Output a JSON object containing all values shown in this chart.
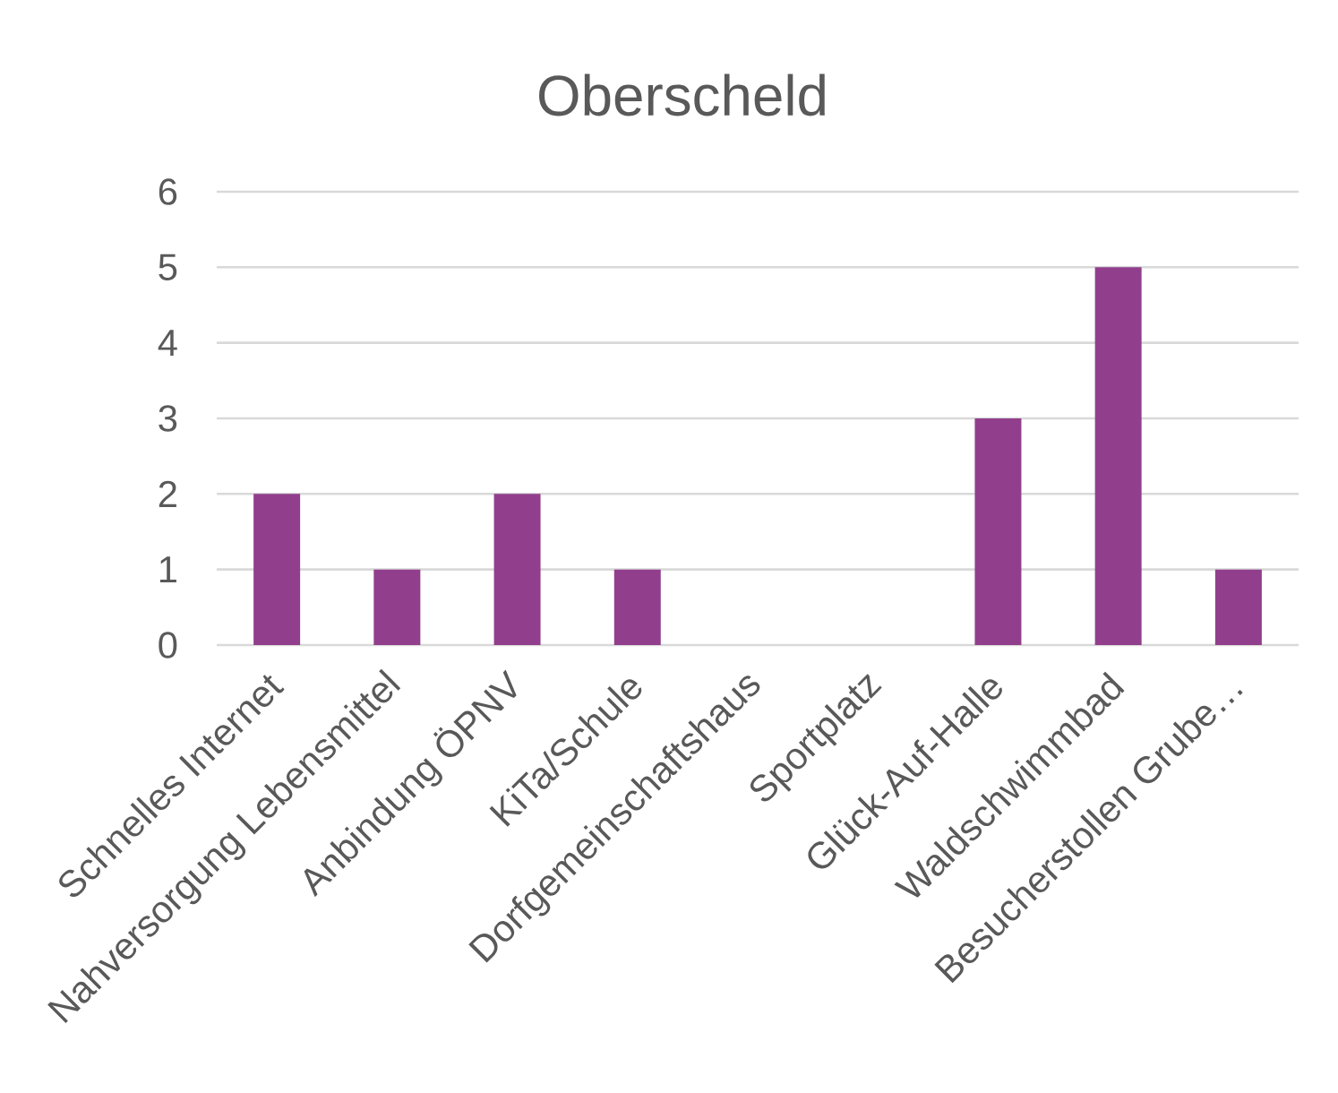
{
  "chart_data": {
    "type": "bar",
    "title": "Oberscheld",
    "categories": [
      "Schnelles Internet",
      "Nahversorgung Lebensmittel",
      "Anbindung ÖPNV",
      "KiTa/Schule",
      "Dorfgemeinschaftshaus",
      "Sportplatz",
      "Glück-Auf-Halle",
      "Waldschwimmbad",
      "Besucherstollen Grube…"
    ],
    "values": [
      2,
      1,
      2,
      1,
      0,
      0,
      3,
      5,
      1
    ],
    "color": "#913f8c",
    "ylim": [
      0,
      6
    ],
    "yticks": [
      0,
      1,
      2,
      3,
      4,
      5,
      6
    ],
    "grid": "y"
  }
}
